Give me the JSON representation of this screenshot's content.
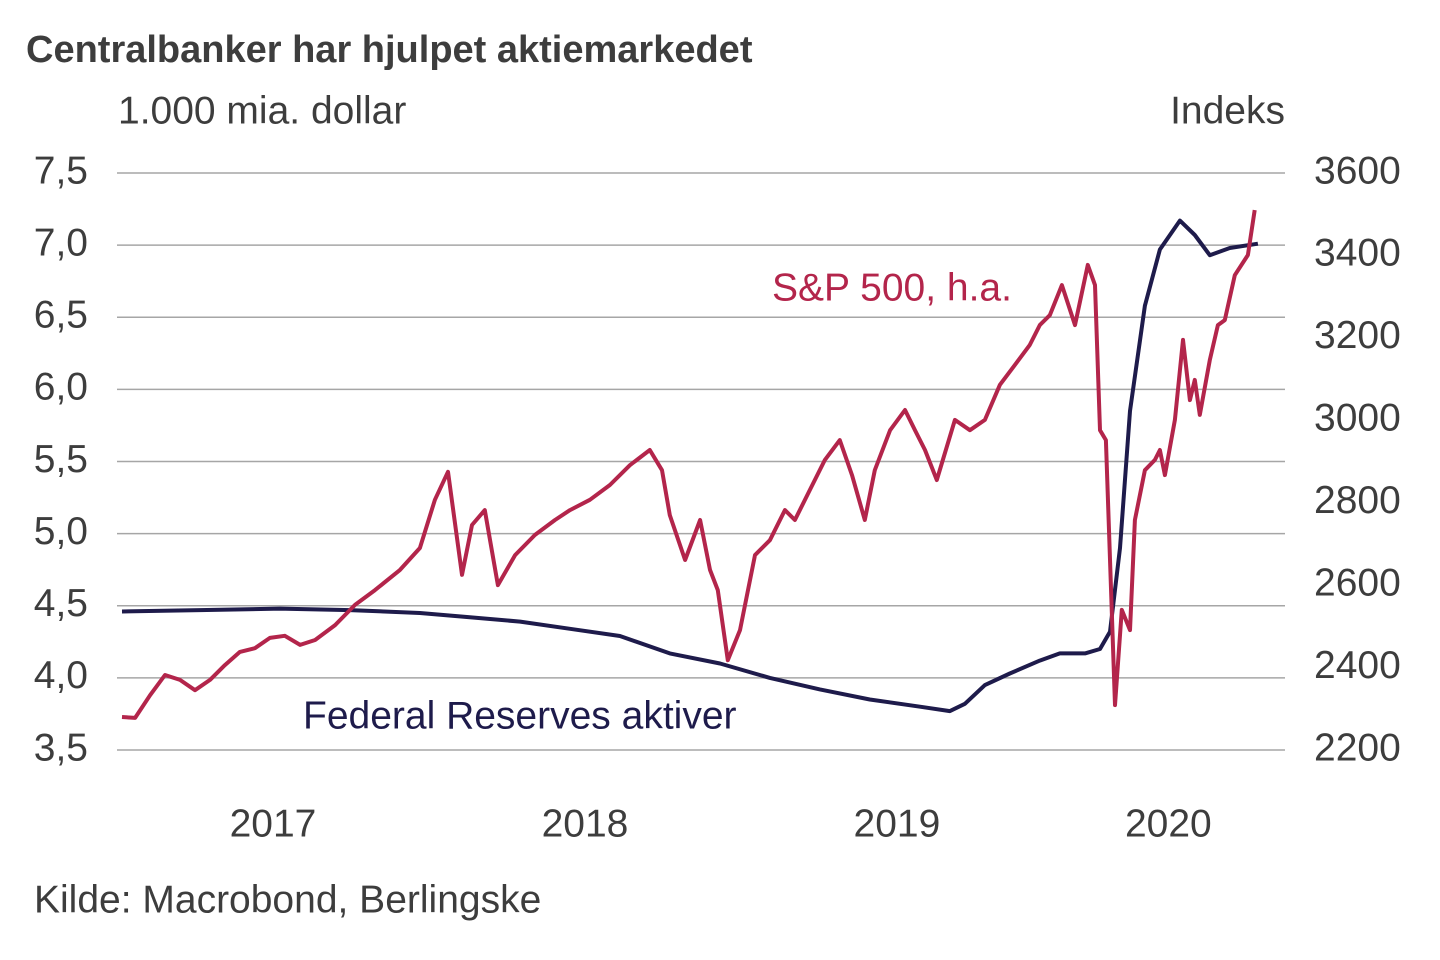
{
  "chart_data": {
    "type": "line",
    "title": "Centralbanker har hjulpet aktiemarkedet",
    "y_label": "1.000 mia. dollar",
    "y2_label": "Indeks",
    "source": "Kilde: Macrobond, Berlingske",
    "annotations": [
      {
        "text": "S&P 500, h.a.",
        "series": 1
      },
      {
        "text": "Federal Reserves aktiver",
        "series": 0
      }
    ],
    "xlim": [
      2017,
      2020.744
    ],
    "xticks": [
      {
        "value": 2017.5,
        "label": "2017"
      },
      {
        "value": 2018.5,
        "label": "2018"
      },
      {
        "value": 2019.5,
        "label": "2019"
      },
      {
        "value": 2020.37,
        "label": "2020"
      }
    ],
    "ylim": [
      3.5,
      7.5
    ],
    "yticks": [
      {
        "value": 3.5,
        "label": "3,5"
      },
      {
        "value": 4.0,
        "label": "4,0"
      },
      {
        "value": 4.5,
        "label": "4,5"
      },
      {
        "value": 5.0,
        "label": "5,0"
      },
      {
        "value": 5.5,
        "label": "5,5"
      },
      {
        "value": 6.0,
        "label": "6,0"
      },
      {
        "value": 6.5,
        "label": "6,5"
      },
      {
        "value": 7.0,
        "label": "7,0"
      },
      {
        "value": 7.5,
        "label": "7,5"
      }
    ],
    "y2lim": [
      2200,
      3600
    ],
    "y2ticks": [
      2200,
      2400,
      2600,
      2800,
      3000,
      3200,
      3400,
      3600
    ],
    "grid": true,
    "series": [
      {
        "name": "Federal Reserves aktiver",
        "color": "#1e1b4b",
        "axis": "y",
        "x": [
          2017.016,
          2017.266,
          2017.522,
          2017.747,
          2017.971,
          2018.131,
          2018.292,
          2018.452,
          2018.612,
          2018.772,
          2018.933,
          2019.093,
          2019.253,
          2019.413,
          2019.574,
          2019.67,
          2019.718,
          2019.782,
          2019.862,
          2019.958,
          2020.022,
          2020.103,
          2020.151,
          2020.183,
          2020.215,
          2020.247,
          2020.295,
          2020.343,
          2020.407,
          2020.455,
          2020.503,
          2020.567,
          2020.657
        ],
        "values": [
          4.46,
          4.47,
          4.48,
          4.47,
          4.45,
          4.42,
          4.39,
          4.34,
          4.29,
          4.17,
          4.1,
          4.0,
          3.92,
          3.85,
          3.8,
          3.77,
          3.82,
          3.95,
          4.03,
          4.12,
          4.17,
          4.17,
          4.2,
          4.32,
          4.9,
          5.85,
          6.58,
          6.97,
          7.17,
          7.07,
          6.93,
          6.98,
          7.01
        ]
      },
      {
        "name": "S&P 500, h.a.",
        "color": "#b3254b",
        "axis": "y2",
        "x": [
          2017.016,
          2017.058,
          2017.106,
          2017.154,
          2017.202,
          2017.25,
          2017.298,
          2017.346,
          2017.394,
          2017.442,
          2017.49,
          2017.538,
          2017.587,
          2017.635,
          2017.699,
          2017.763,
          2017.827,
          2017.907,
          2017.971,
          2018.019,
          2018.061,
          2018.106,
          2018.138,
          2018.179,
          2018.221,
          2018.276,
          2018.34,
          2018.404,
          2018.452,
          2018.516,
          2018.58,
          2018.644,
          2018.708,
          2018.747,
          2018.772,
          2018.821,
          2018.869,
          2018.901,
          2018.926,
          2018.958,
          2018.997,
          2019.045,
          2019.093,
          2019.141,
          2019.173,
          2019.221,
          2019.269,
          2019.317,
          2019.356,
          2019.397,
          2019.429,
          2019.478,
          2019.526,
          2019.558,
          2019.59,
          2019.628,
          2019.686,
          2019.734,
          2019.782,
          2019.83,
          2019.878,
          2019.926,
          2019.958,
          2019.99,
          2020.029,
          2020.071,
          2020.112,
          2020.135,
          2020.151,
          2020.17,
          2020.199,
          2020.221,
          2020.247,
          2020.263,
          2020.295,
          2020.327,
          2020.343,
          2020.359,
          2020.391,
          2020.417,
          2020.439,
          2020.455,
          2020.471,
          2020.503,
          2020.529,
          2020.551,
          2020.583,
          2020.625,
          2020.647
        ],
        "values": [
          2280,
          2278,
          2333,
          2382,
          2370,
          2345,
          2370,
          2406,
          2438,
          2447,
          2472,
          2477,
          2455,
          2467,
          2503,
          2552,
          2588,
          2637,
          2690,
          2807,
          2875,
          2625,
          2746,
          2782,
          2600,
          2673,
          2722,
          2758,
          2782,
          2807,
          2843,
          2891,
          2928,
          2879,
          2770,
          2661,
          2758,
          2637,
          2588,
          2418,
          2491,
          2673,
          2709,
          2782,
          2758,
          2831,
          2904,
          2952,
          2867,
          2758,
          2879,
          2976,
          3025,
          2976,
          2928,
          2855,
          3001,
          2976,
          3001,
          3086,
          3134,
          3183,
          3231,
          3255,
          3328,
          3231,
          3377,
          3328,
          2976,
          2952,
          2309,
          2540,
          2491,
          2758,
          2879,
          2904,
          2928,
          2867,
          3001,
          3195,
          3049,
          3098,
          3013,
          3146,
          3231,
          3243,
          3352,
          3401,
          3510
        ]
      }
    ]
  }
}
